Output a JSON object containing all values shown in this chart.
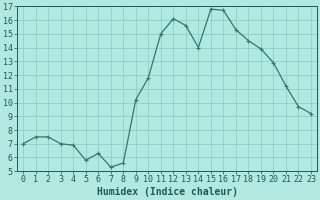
{
  "x": [
    0,
    1,
    2,
    3,
    4,
    5,
    6,
    7,
    8,
    9,
    10,
    11,
    12,
    13,
    14,
    15,
    16,
    17,
    18,
    19,
    20,
    21,
    22,
    23
  ],
  "y": [
    7.0,
    7.5,
    7.5,
    7.0,
    6.9,
    5.8,
    6.3,
    5.3,
    5.6,
    10.2,
    11.8,
    15.0,
    16.1,
    15.6,
    14.0,
    16.8,
    16.7,
    15.3,
    14.5,
    13.9,
    12.9,
    11.2,
    9.7,
    9.2
  ],
  "line_color": "#2d7a6e",
  "marker": "+",
  "marker_size": 3,
  "bg_color": "#b2e8e2",
  "grid_color": "#8dcfca",
  "xlabel": "Humidex (Indice chaleur)",
  "ylim": [
    5,
    17
  ],
  "xlim": [
    -0.5,
    23.5
  ],
  "yticks": [
    5,
    6,
    7,
    8,
    9,
    10,
    11,
    12,
    13,
    14,
    15,
    16,
    17
  ],
  "xticks": [
    0,
    1,
    2,
    3,
    4,
    5,
    6,
    7,
    8,
    9,
    10,
    11,
    12,
    13,
    14,
    15,
    16,
    17,
    18,
    19,
    20,
    21,
    22,
    23
  ],
  "font_color": "#1a5a5a",
  "tick_font_size": 6,
  "label_font_size": 7
}
